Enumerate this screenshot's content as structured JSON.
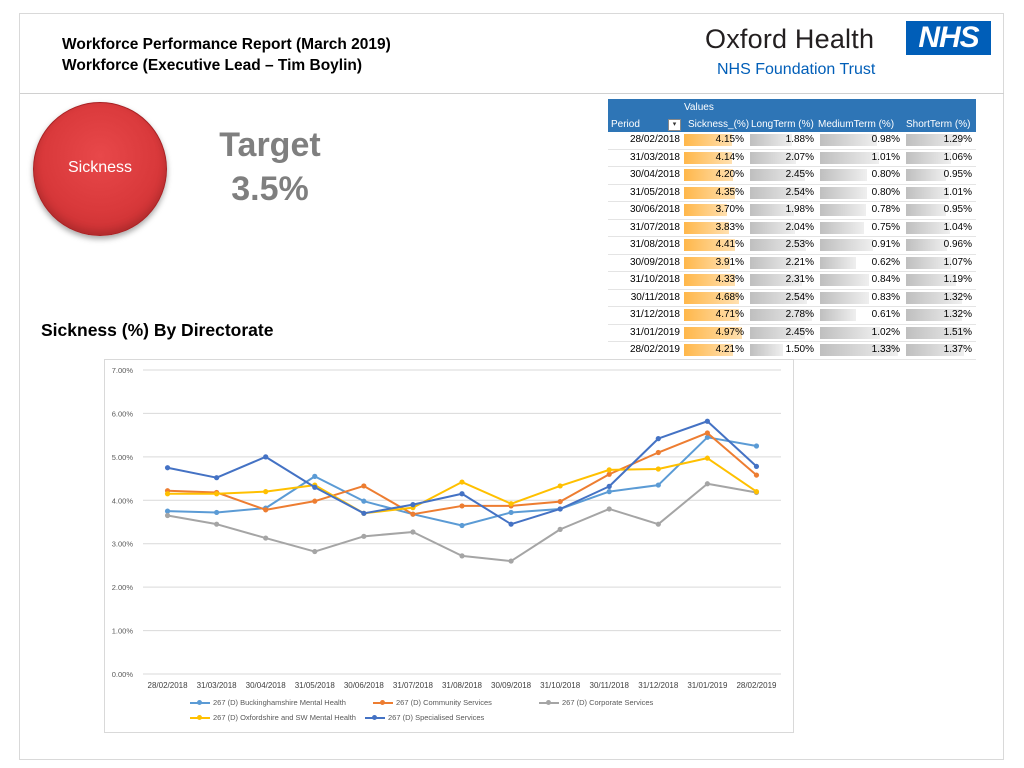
{
  "header": {
    "title_line1": "Workforce Performance Report (March 2019)",
    "title_line2": "Workforce (Executive Lead – Tim Boylin)"
  },
  "logo": {
    "name": "Oxford Health",
    "badge": "NHS",
    "trust": "NHS Foundation Trust",
    "brand_color": "#005eb8"
  },
  "kpi": {
    "label": "Sickness",
    "target_label": "Target",
    "target_value": "3.5%",
    "circle_color": "#d9393b"
  },
  "pivot_table": {
    "values_label": "Values",
    "headers": [
      "Period",
      "Sickness_(%)",
      "LongTerm (%)",
      "MediumTerm (%)",
      "ShortTerm (%)"
    ],
    "filter_icon": "filter-dropdown-icon",
    "rows": [
      {
        "period": "28/02/2018",
        "sickness": "4.15%",
        "long": "1.88%",
        "medium": "0.98%",
        "short": "1.29%"
      },
      {
        "period": "31/03/2018",
        "sickness": "4.14%",
        "long": "2.07%",
        "medium": "1.01%",
        "short": "1.06%"
      },
      {
        "period": "30/04/2018",
        "sickness": "4.20%",
        "long": "2.45%",
        "medium": "0.80%",
        "short": "0.95%"
      },
      {
        "period": "31/05/2018",
        "sickness": "4.35%",
        "long": "2.54%",
        "medium": "0.80%",
        "short": "1.01%"
      },
      {
        "period": "30/06/2018",
        "sickness": "3.70%",
        "long": "1.98%",
        "medium": "0.78%",
        "short": "0.95%"
      },
      {
        "period": "31/07/2018",
        "sickness": "3.83%",
        "long": "2.04%",
        "medium": "0.75%",
        "short": "1.04%"
      },
      {
        "period": "31/08/2018",
        "sickness": "4.41%",
        "long": "2.53%",
        "medium": "0.91%",
        "short": "0.96%"
      },
      {
        "period": "30/09/2018",
        "sickness": "3.91%",
        "long": "2.21%",
        "medium": "0.62%",
        "short": "1.07%"
      },
      {
        "period": "31/10/2018",
        "sickness": "4.33%",
        "long": "2.31%",
        "medium": "0.84%",
        "short": "1.19%"
      },
      {
        "period": "30/11/2018",
        "sickness": "4.68%",
        "long": "2.54%",
        "medium": "0.83%",
        "short": "1.32%"
      },
      {
        "period": "31/12/2018",
        "sickness": "4.71%",
        "long": "2.78%",
        "medium": "0.61%",
        "short": "1.32%"
      },
      {
        "period": "31/01/2019",
        "sickness": "4.97%",
        "long": "2.45%",
        "medium": "1.02%",
        "short": "1.51%"
      },
      {
        "period": "28/02/2019",
        "sickness": "4.21%",
        "long": "1.50%",
        "medium": "1.33%",
        "short": "1.37%"
      }
    ]
  },
  "section": {
    "title": "Sickness (%) By Directorate"
  },
  "chart_data": {
    "type": "line",
    "title": "",
    "xlabel": "",
    "ylabel": "",
    "ylim": [
      0,
      7
    ],
    "yticks": [
      "0.00%",
      "1.00%",
      "2.00%",
      "3.00%",
      "4.00%",
      "5.00%",
      "6.00%",
      "7.00%"
    ],
    "grid": "horizontal",
    "legend_position": "bottom",
    "categories": [
      "28/02/2018",
      "31/03/2018",
      "30/04/2018",
      "31/05/2018",
      "30/06/2018",
      "31/07/2018",
      "31/08/2018",
      "30/09/2018",
      "31/10/2018",
      "30/11/2018",
      "31/12/2018",
      "31/01/2019",
      "28/02/2019"
    ],
    "series": [
      {
        "name": "267 (D) Buckinghamshire Mental Health",
        "color": "#5b9bd5",
        "values": [
          3.75,
          3.72,
          3.82,
          4.55,
          3.98,
          3.68,
          3.42,
          3.72,
          3.8,
          4.2,
          4.35,
          5.45,
          5.25
        ]
      },
      {
        "name": "267 (D) Community Services",
        "color": "#ed7d31",
        "values": [
          4.22,
          4.18,
          3.78,
          3.98,
          4.33,
          3.68,
          3.87,
          3.87,
          3.97,
          4.6,
          5.1,
          5.55,
          4.58
        ]
      },
      {
        "name": "267 (D) Corporate Services",
        "color": "#a5a5a5",
        "values": [
          3.65,
          3.45,
          3.13,
          2.82,
          3.17,
          3.27,
          2.72,
          2.6,
          3.33,
          3.8,
          3.45,
          4.38,
          4.18
        ]
      },
      {
        "name": "267 (D) Oxfordshire and SW Mental Health",
        "color": "#ffc000",
        "values": [
          4.15,
          4.15,
          4.2,
          4.35,
          3.7,
          3.83,
          4.42,
          3.92,
          4.33,
          4.7,
          4.72,
          4.97,
          4.2
        ]
      },
      {
        "name": "267 (D) Specialised Services",
        "color": "#4472c4",
        "values": [
          4.75,
          4.52,
          5.0,
          4.3,
          3.7,
          3.9,
          4.15,
          3.45,
          3.8,
          4.32,
          5.42,
          5.82,
          4.78
        ]
      }
    ]
  }
}
